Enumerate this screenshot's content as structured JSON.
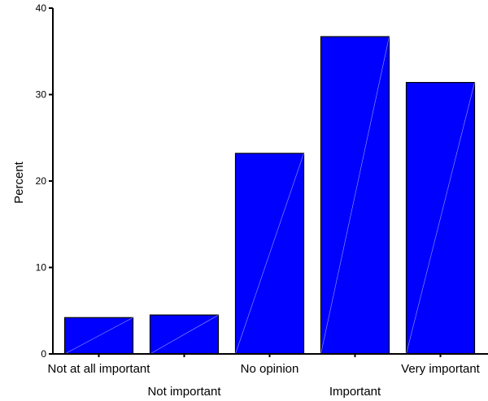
{
  "chart_data": {
    "type": "bar",
    "title": "",
    "xlabel": "",
    "ylabel": "Percent",
    "ylim": [
      0,
      40
    ],
    "yticks": [
      0,
      10,
      20,
      30,
      40
    ],
    "categories": [
      "Not at all important",
      "Not important",
      "No opinion",
      "Important",
      "Very important"
    ],
    "values": [
      4.2,
      4.5,
      23.2,
      36.7,
      31.4
    ],
    "bar_color": "#0000ff",
    "bar_edge_color": "#000000",
    "grid": false,
    "legend": "none"
  }
}
